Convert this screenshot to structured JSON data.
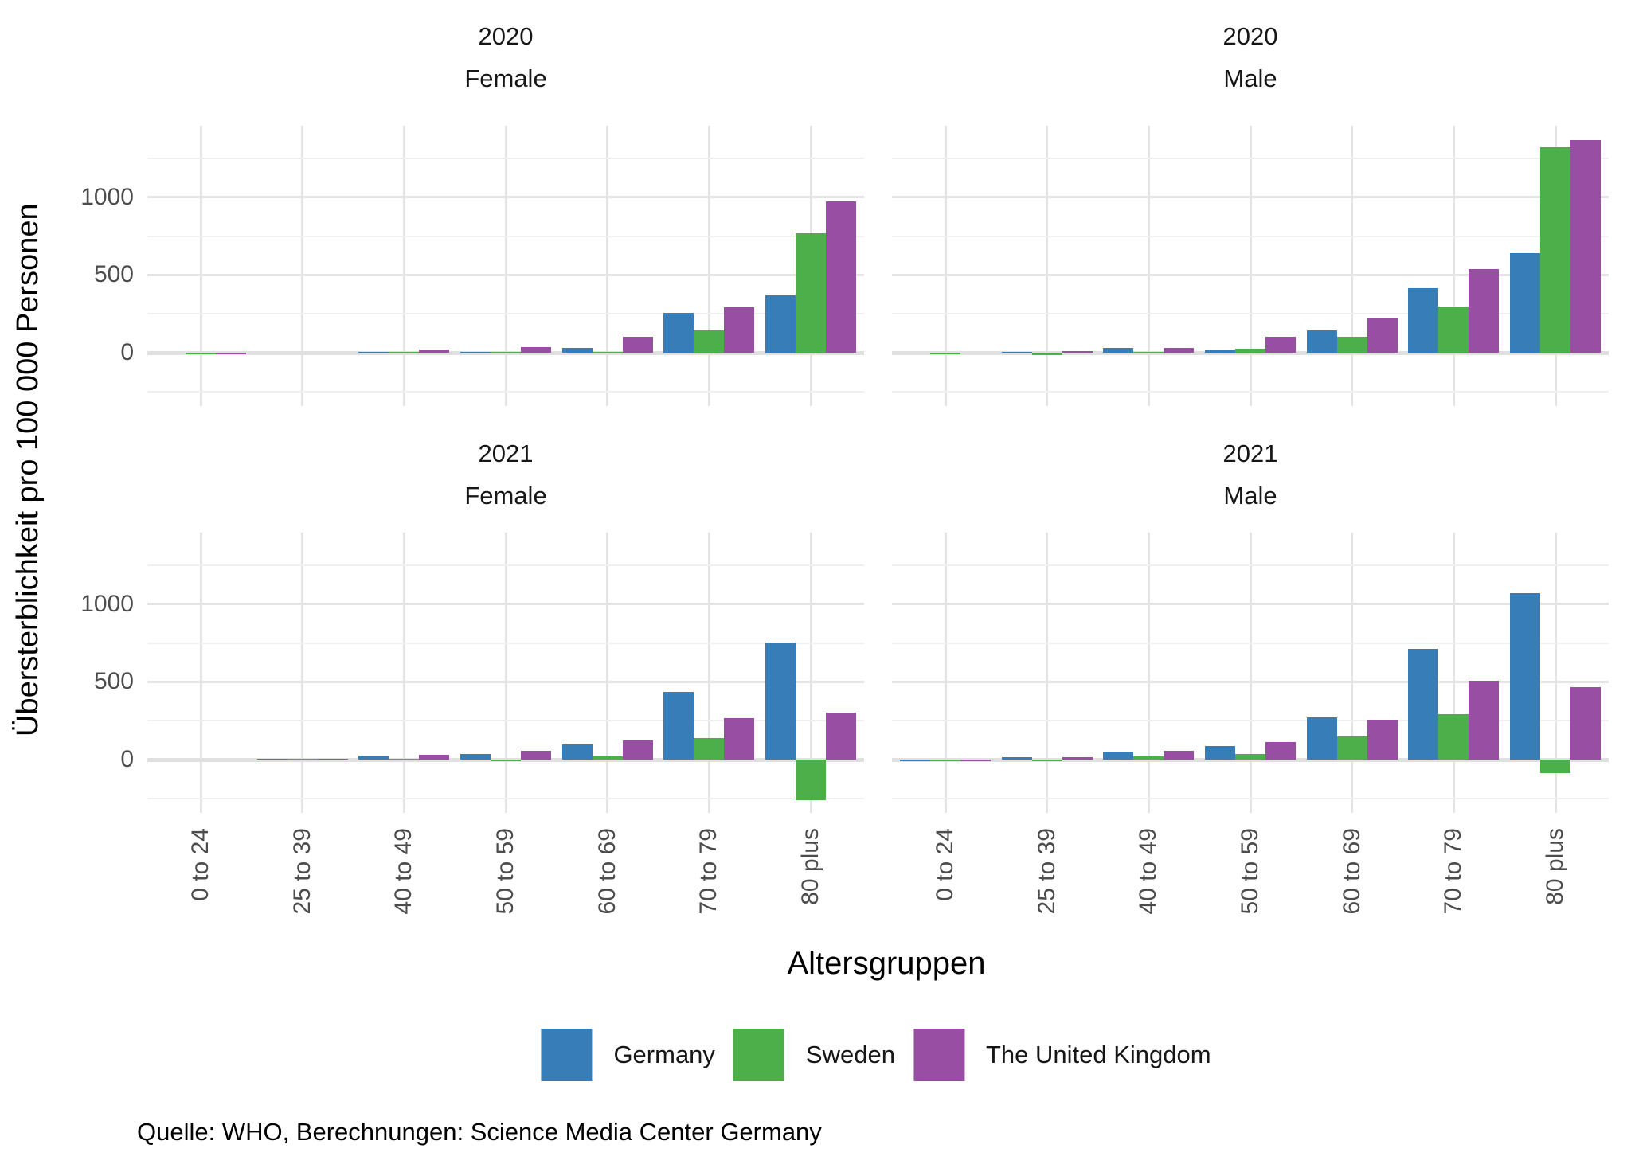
{
  "figure": {
    "y_axis_title": "Übersterblichkeit pro 100 000 Personen",
    "x_axis_title": "Altersgruppen",
    "source": "Quelle: WHO, Berechnungen: Science Media Center Germany"
  },
  "legend": {
    "items": [
      {
        "label": "Germany",
        "color": "#377EB8"
      },
      {
        "label": "Sweden",
        "color": "#4DAF4A"
      },
      {
        "label": "The United Kingdom",
        "color": "#984EA3"
      }
    ]
  },
  "chart_data": {
    "type": "bar",
    "title": "",
    "xlabel": "Altersgruppen",
    "ylabel": "Übersterblichkeit pro 100 000 Personen",
    "categories": [
      "0 to 24",
      "25 to 39",
      "40 to 49",
      "50 to 59",
      "60 to 69",
      "70 to 79",
      "80 plus"
    ],
    "y_ticks": [
      0,
      500,
      1000
    ],
    "y_minor_ticks": [
      -250,
      250,
      750,
      1250
    ],
    "ylim": [
      -343,
      1460
    ],
    "grid": "on",
    "legend_position": "bottom",
    "facet_rows": [
      "2020",
      "2021"
    ],
    "facet_cols": [
      "Female",
      "Male"
    ],
    "series_colors": {
      "Germany": "#377EB8",
      "Sweden": "#4DAF4A",
      "The United Kingdom": "#984EA3"
    },
    "panels": [
      {
        "year": "2020",
        "sex": "Female",
        "series": [
          {
            "name": "Germany",
            "values": [
              0,
              0,
              3,
              5,
              33,
              255,
              370
            ]
          },
          {
            "name": "Sweden",
            "values": [
              -5,
              0,
              2,
              3,
              5,
              145,
              770
            ]
          },
          {
            "name": "The United Kingdom",
            "values": [
              -5,
              0,
              20,
              36,
              105,
              290,
              975
            ]
          }
        ]
      },
      {
        "year": "2020",
        "sex": "Male",
        "series": [
          {
            "name": "Germany",
            "values": [
              0,
              5,
              30,
              15,
              145,
              415,
              640
            ]
          },
          {
            "name": "Sweden",
            "values": [
              -3,
              -15,
              5,
              28,
              105,
              295,
              1320
            ]
          },
          {
            "name": "The United Kingdom",
            "values": [
              0,
              8,
              32,
              105,
              222,
              540,
              1370
            ]
          }
        ]
      },
      {
        "year": "2021",
        "sex": "Female",
        "series": [
          {
            "name": "Germany",
            "values": [
              0,
              5,
              25,
              35,
              95,
              435,
              755
            ]
          },
          {
            "name": "Sweden",
            "values": [
              0,
              2,
              3,
              -8,
              20,
              140,
              -260
            ]
          },
          {
            "name": "The United Kingdom",
            "values": [
              0,
              5,
              30,
              55,
              125,
              265,
              300
            ]
          }
        ]
      },
      {
        "year": "2021",
        "sex": "Male",
        "series": [
          {
            "name": "Germany",
            "values": [
              -3,
              15,
              50,
              85,
              270,
              710,
              1070
            ]
          },
          {
            "name": "Sweden",
            "values": [
              -2,
              -3,
              18,
              35,
              150,
              290,
              -85
            ]
          },
          {
            "name": "The United Kingdom",
            "values": [
              -2,
              15,
              55,
              115,
              255,
              505,
              465
            ]
          }
        ]
      }
    ]
  }
}
